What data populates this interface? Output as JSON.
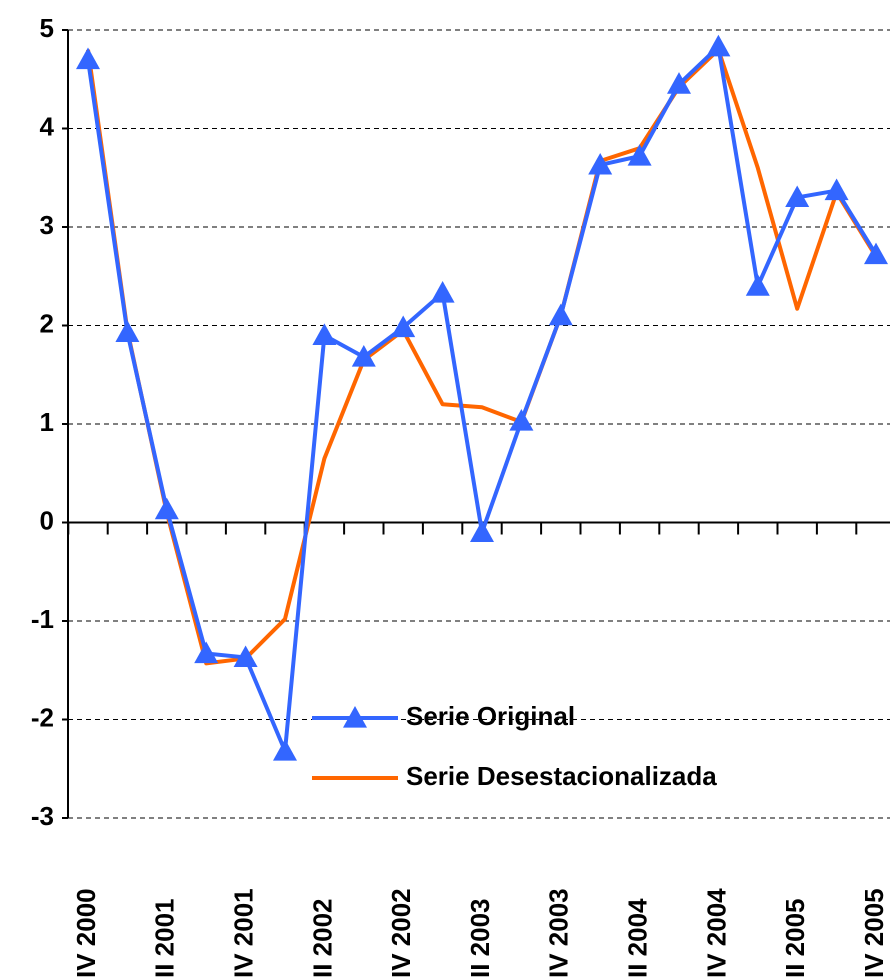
{
  "chart_data": {
    "type": "line",
    "categories": [
      "IV 2000",
      null,
      "II 2001",
      null,
      "IV 2001",
      null,
      "II 2002",
      null,
      "IV 2002",
      null,
      "II 2003",
      null,
      "IV 2003",
      null,
      "II 2004",
      null,
      "IV 2004",
      null,
      "II 2005",
      null,
      "IV 2005"
    ],
    "series": [
      {
        "name": "Serie Original",
        "color": "#3366ff",
        "marker": "triangle",
        "values": [
          4.7,
          1.93,
          0.13,
          -1.33,
          -1.37,
          -2.32,
          1.9,
          1.68,
          1.98,
          2.33,
          -0.1,
          1.03,
          2.1,
          3.63,
          3.72,
          4.45,
          4.83,
          2.4,
          3.3,
          3.37,
          2.72
        ]
      },
      {
        "name": "Serie Desestacionalizada",
        "color": "#ff6600",
        "values": [
          4.8,
          1.95,
          0.1,
          -1.43,
          -1.38,
          -0.98,
          0.65,
          1.65,
          1.95,
          1.2,
          1.17,
          1.02,
          2.1,
          3.67,
          3.8,
          4.42,
          4.8,
          3.6,
          2.17,
          3.35,
          2.7
        ]
      }
    ],
    "ylim": [
      -3,
      5
    ],
    "yticks": [
      -3,
      -2,
      -1,
      0,
      1,
      2,
      3,
      4,
      5
    ],
    "grid": true
  }
}
